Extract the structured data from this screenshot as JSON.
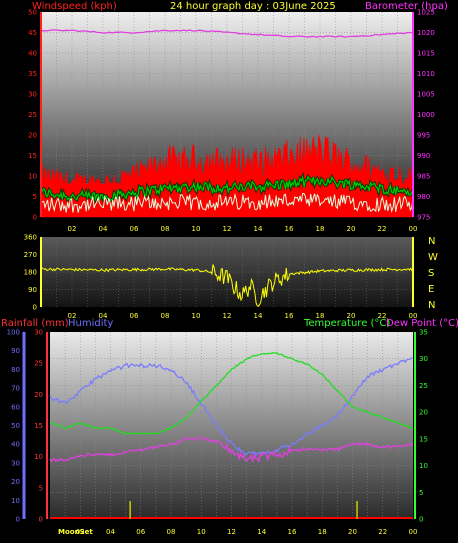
{
  "header": {
    "left_label": "Windspeed (kph)",
    "title": "24 hour graph day : 03June 2025",
    "right_label": "Barometer (hpa)"
  },
  "bottom_header": {
    "rainfall_label": "Rainfall (mm)",
    "humidity_label": "Humidity",
    "temperature_label": "Temperature (°C)",
    "dewpoint_label": "Dew Point (°C)"
  },
  "moon_label": "MoonSet",
  "colors": {
    "wind_axis": "#ff2020",
    "baro_axis": "#ff33ff",
    "title": "#ffff33",
    "rain_axis": "#ff3333",
    "humidity_axis": "#6f6fff",
    "temp_axis": "#33ff33",
    "dew_axis": "#ff33ff",
    "wind_gust": "#ff0000",
    "wind_avg": "#00cc00",
    "wind_dir": "#ffff00",
    "barometer": "#e040e0",
    "humidity": "#7b7bff",
    "temperature": "#22dd22",
    "dewpoint": "#e040e0",
    "moon_marker": "#cccc00"
  },
  "chart_data": [
    {
      "type": "line",
      "title": "24 hour graph day : 03June 2025",
      "x_ticks": [
        "02",
        "04",
        "06",
        "08",
        "10",
        "12",
        "14",
        "16",
        "18",
        "20",
        "22",
        "00"
      ],
      "y_left": {
        "label": "Windspeed (kph)",
        "range": [
          0,
          50
        ],
        "ticks": [
          0,
          5,
          10,
          15,
          20,
          25,
          30,
          35,
          40,
          45,
          50
        ]
      },
      "y_right": {
        "label": "Barometer (hpa)",
        "range": [
          975,
          1025
        ],
        "ticks": [
          975,
          980,
          985,
          990,
          995,
          1000,
          1005,
          1010,
          1015,
          1020,
          1025
        ]
      },
      "series": [
        {
          "axis": "right",
          "hours": [
            0,
            2,
            4,
            6,
            8,
            10,
            12,
            14,
            16,
            18,
            20,
            22,
            24
          ],
          "values": [
            1020.5,
            1020.5,
            1020,
            1020,
            1020.5,
            1020.5,
            1020,
            1019.5,
            1019,
            1019,
            1019,
            1019.5,
            1020
          ]
        },
        {
          "axis": "left",
          "hours": [
            0,
            2,
            4,
            6,
            7,
            8,
            9,
            10,
            12,
            13,
            14,
            16,
            17,
            18,
            19,
            20,
            22,
            24
          ],
          "values": [
            13,
            11,
            11,
            13,
            15,
            18,
            17,
            18,
            17,
            18,
            17,
            19,
            20,
            21,
            19,
            17,
            14,
            13
          ]
        },
        {
          "axis": "left",
          "hours": [
            0,
            2,
            4,
            6,
            8,
            10,
            12,
            14,
            16,
            18,
            20,
            22,
            24
          ],
          "values": [
            6,
            5,
            5,
            6,
            7,
            7.5,
            7,
            7.5,
            8,
            9,
            8,
            7,
            6
          ]
        },
        {
          "axis": "left",
          "hours": [
            0,
            4,
            8,
            12,
            16,
            20,
            24
          ],
          "values": [
            3,
            3,
            3.5,
            3.5,
            4,
            3.5,
            3
          ]
        }
      ]
    },
    {
      "type": "line",
      "x_ticks": [
        "02",
        "04",
        "06",
        "08",
        "10",
        "12",
        "14",
        "16",
        "18",
        "20",
        "22",
        "00"
      ],
      "y_left": {
        "range": [
          0,
          360
        ],
        "ticks": [
          0,
          90,
          180,
          270,
          360
        ]
      },
      "y_right": {
        "ticks": [
          "N",
          "W",
          "S",
          "E",
          "N"
        ]
      },
      "series": [
        {
          "hours": [
            0,
            4,
            8,
            10,
            11,
            12,
            12.5,
            13,
            13.5,
            14,
            14.5,
            15,
            16,
            18,
            20,
            24
          ],
          "values": [
            195,
            190,
            195,
            190,
            180,
            150,
            100,
            60,
            110,
            40,
            90,
            130,
            170,
            185,
            190,
            195
          ]
        }
      ]
    },
    {
      "type": "line",
      "x_ticks": [
        "02",
        "04",
        "06",
        "08",
        "10",
        "12",
        "14",
        "16",
        "18",
        "20",
        "22",
        "00"
      ],
      "y_humidity": {
        "label": "Humidity",
        "range": [
          0,
          100
        ],
        "ticks": [
          0,
          10,
          20,
          30,
          40,
          50,
          60,
          70,
          80,
          90,
          100
        ]
      },
      "y_rain": {
        "label": "Rainfall (mm)",
        "range": [
          0,
          30
        ],
        "ticks": [
          0,
          5,
          10,
          15,
          20,
          25,
          30
        ]
      },
      "y_temp": {
        "label": "Temperature (°C)",
        "range": [
          0,
          35
        ],
        "ticks": [
          0,
          5,
          10,
          15,
          20,
          25,
          30,
          35
        ]
      },
      "series": [
        {
          "axis": "humidity",
          "hours": [
            0,
            1,
            2,
            3,
            4,
            5,
            6,
            7,
            8,
            9,
            10,
            11,
            12,
            13,
            14,
            15,
            16,
            17,
            18,
            19,
            20,
            21,
            22,
            23,
            24
          ],
          "values": [
            65,
            62,
            68,
            75,
            79,
            82,
            82,
            82,
            80,
            73,
            62,
            50,
            40,
            35,
            35,
            37,
            40,
            45,
            50,
            55,
            66,
            76,
            80,
            83,
            87
          ]
        },
        {
          "axis": "temp",
          "hours": [
            0,
            1,
            2,
            3,
            4,
            5,
            6,
            7,
            8,
            9,
            10,
            11,
            12,
            13,
            14,
            15,
            16,
            17,
            18,
            19,
            20,
            21,
            22,
            23,
            24
          ],
          "values": [
            18,
            17,
            18,
            17,
            17,
            16,
            16,
            16,
            17,
            19,
            22,
            25,
            28,
            30,
            31,
            31,
            30,
            29,
            27,
            24,
            21,
            20,
            19,
            18,
            17
          ]
        },
        {
          "axis": "temp",
          "hours": [
            0,
            1,
            2,
            3,
            4,
            5,
            6,
            7,
            8,
            9,
            10,
            11,
            12,
            13,
            14,
            15,
            16,
            17,
            18,
            19,
            20,
            21,
            22,
            23,
            24
          ],
          "values": [
            11,
            11,
            12,
            12,
            12,
            12.5,
            13,
            13.5,
            14,
            15,
            15,
            14.5,
            13,
            11,
            11.5,
            12,
            13,
            13,
            13,
            13,
            14,
            14,
            13.5,
            13.5,
            14
          ]
        },
        {
          "axis": "rain",
          "hours": [
            0,
            24
          ],
          "values": [
            0,
            0
          ]
        }
      ],
      "moon_events_hours": [
        5.3,
        20.3
      ]
    }
  ]
}
